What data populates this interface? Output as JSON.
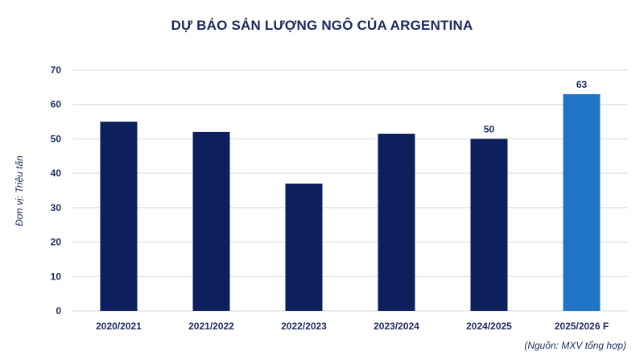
{
  "chart_data": {
    "type": "bar",
    "title": "DỰ BÁO SẢN LƯỢNG NGÔ CỦA ARGENTINA",
    "ylabel": "Đơn vị: Triệu tấn",
    "xlabel": "",
    "source": "(Nguồn: MXV tổng hợp)",
    "categories": [
      "2020/2021",
      "2021/2022",
      "2022/2023",
      "2023/2024",
      "2024/2025",
      "2025/2026 F"
    ],
    "values": [
      55,
      52,
      37,
      51.5,
      50,
      63
    ],
    "data_labels": [
      "",
      "",
      "",
      "",
      "50",
      "63"
    ],
    "ylim": [
      0,
      70
    ],
    "yticks": [
      0,
      10,
      20,
      30,
      40,
      50,
      60,
      70
    ],
    "grid": true,
    "colors": {
      "bar": "#0d1f5c",
      "highlight": "#1f74c4",
      "grid": "#d9d9d9",
      "text": "#1a2a5e"
    },
    "highlight_index": 5
  }
}
